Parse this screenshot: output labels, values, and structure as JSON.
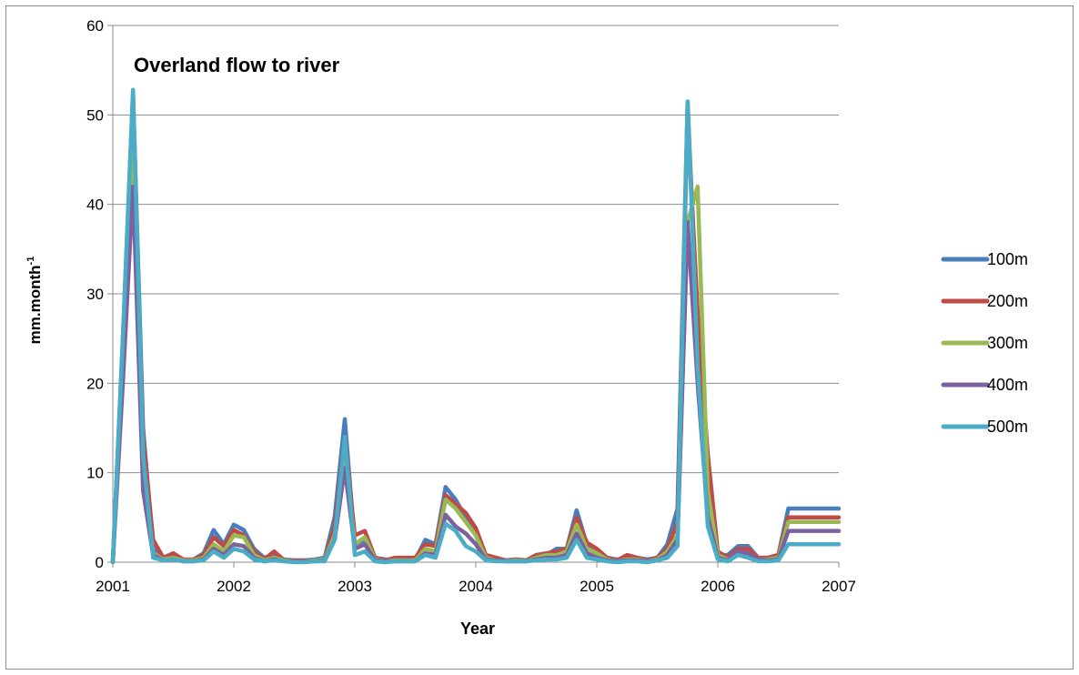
{
  "chart_data": {
    "type": "line",
    "title": "Overland flow to river",
    "xlabel": "Year",
    "ylabel": "mm.month",
    "ylabel_sup": "-1",
    "x_ticks": [
      "2001",
      "2002",
      "2003",
      "2004",
      "2005",
      "2006",
      "2007"
    ],
    "xlim": [
      2001,
      2007
    ],
    "y_ticks": [
      "0",
      "10",
      "20",
      "30",
      "40",
      "50",
      "60"
    ],
    "ylim": [
      0,
      60
    ],
    "grid": "horizontal",
    "legend_position": "right",
    "x": [
      2001.0,
      2001.083,
      2001.167,
      2001.25,
      2001.333,
      2001.417,
      2001.5,
      2001.583,
      2001.667,
      2001.75,
      2001.833,
      2001.917,
      2002.0,
      2002.083,
      2002.167,
      2002.25,
      2002.333,
      2002.417,
      2002.5,
      2002.583,
      2002.667,
      2002.75,
      2002.833,
      2002.917,
      2003.0,
      2003.083,
      2003.167,
      2003.25,
      2003.333,
      2003.417,
      2003.5,
      2003.583,
      2003.667,
      2003.75,
      2003.833,
      2003.917,
      2004.0,
      2004.083,
      2004.167,
      2004.25,
      2004.333,
      2004.417,
      2004.5,
      2004.583,
      2004.667,
      2004.75,
      2004.833,
      2004.917,
      2005.0,
      2005.083,
      2005.167,
      2005.25,
      2005.333,
      2005.417,
      2005.5,
      2005.583,
      2005.667,
      2005.75,
      2005.833,
      2005.917,
      2006.0,
      2006.083,
      2006.167,
      2006.25,
      2006.333,
      2006.417,
      2006.5,
      2006.583,
      2006.667,
      2006.75,
      2006.833,
      2006.917,
      2007.0
    ],
    "series": [
      {
        "name": "100m",
        "color": "#4a7ebb",
        "values": [
          0.0,
          25.0,
          52.5,
          15.0,
          1.5,
          0.5,
          0.8,
          0.2,
          0.3,
          1.0,
          3.6,
          2.0,
          4.2,
          3.6,
          1.5,
          0.5,
          0.8,
          0.3,
          0.2,
          0.2,
          0.3,
          0.5,
          5.0,
          16.0,
          2.0,
          2.5,
          0.5,
          0.3,
          0.3,
          0.3,
          0.3,
          2.5,
          2.0,
          8.4,
          7.0,
          5.0,
          3.0,
          0.5,
          0.3,
          0.2,
          0.3,
          0.2,
          0.8,
          0.8,
          1.5,
          1.5,
          5.8,
          2.0,
          1.5,
          0.5,
          0.3,
          0.3,
          0.5,
          0.3,
          0.5,
          2.0,
          6.0,
          51.5,
          25.0,
          5.0,
          0.8,
          0.8,
          1.8,
          1.8,
          0.5,
          0.5,
          0.8,
          6.0,
          6.0,
          6.0,
          6.0,
          6.0,
          6.0
        ]
      },
      {
        "name": "200m",
        "color": "#be4b48",
        "values": [
          0.0,
          24.0,
          50.0,
          14.0,
          2.5,
          0.5,
          1.0,
          0.3,
          0.3,
          0.8,
          2.8,
          1.8,
          3.6,
          3.0,
          1.2,
          0.3,
          1.2,
          0.2,
          0.2,
          0.2,
          0.2,
          0.3,
          4.0,
          14.0,
          3.0,
          3.5,
          0.5,
          0.2,
          0.5,
          0.5,
          0.5,
          2.0,
          1.8,
          7.5,
          6.5,
          5.5,
          3.8,
          0.8,
          0.5,
          0.2,
          0.3,
          0.2,
          0.8,
          1.0,
          1.2,
          1.5,
          5.0,
          2.2,
          1.5,
          0.5,
          0.2,
          0.8,
          0.5,
          0.2,
          0.5,
          1.5,
          4.5,
          50.0,
          28.0,
          12.0,
          1.2,
          0.5,
          1.5,
          1.5,
          0.5,
          0.5,
          0.8,
          5.0,
          5.0,
          5.0,
          5.0,
          5.0,
          5.0
        ]
      },
      {
        "name": "300m",
        "color": "#98b954",
        "values": [
          0.0,
          23.0,
          48.0,
          10.0,
          1.0,
          0.3,
          0.5,
          0.2,
          0.2,
          0.5,
          2.0,
          1.2,
          3.0,
          2.8,
          0.8,
          0.2,
          0.5,
          0.2,
          0.1,
          0.1,
          0.2,
          0.3,
          3.0,
          12.0,
          2.0,
          2.8,
          0.3,
          0.1,
          0.2,
          0.2,
          0.2,
          1.5,
          1.2,
          7.0,
          6.0,
          4.5,
          3.0,
          0.5,
          0.2,
          0.1,
          0.2,
          0.1,
          0.5,
          0.8,
          0.8,
          1.2,
          4.2,
          1.5,
          1.0,
          0.3,
          0.1,
          0.3,
          0.3,
          0.1,
          0.3,
          1.2,
          3.0,
          38.0,
          42.0,
          8.0,
          0.8,
          0.3,
          1.0,
          1.0,
          0.3,
          0.3,
          0.5,
          4.5,
          4.5,
          4.5,
          4.5,
          4.5,
          4.5
        ]
      },
      {
        "name": "400m",
        "color": "#7d60a0",
        "values": [
          0.0,
          20.0,
          42.0,
          8.0,
          0.8,
          0.2,
          0.3,
          0.1,
          0.1,
          0.3,
          1.5,
          0.8,
          2.0,
          1.8,
          0.5,
          0.1,
          0.3,
          0.1,
          0.1,
          0.1,
          0.1,
          0.2,
          2.5,
          10.5,
          1.5,
          2.0,
          0.2,
          0.1,
          0.1,
          0.1,
          0.1,
          1.0,
          0.8,
          5.3,
          4.0,
          3.2,
          2.0,
          0.3,
          0.2,
          0.1,
          0.1,
          0.1,
          0.3,
          0.5,
          0.5,
          0.8,
          3.2,
          1.0,
          0.5,
          0.2,
          0.1,
          0.2,
          0.2,
          0.1,
          0.2,
          0.8,
          2.5,
          38.0,
          20.0,
          5.0,
          0.5,
          0.2,
          1.2,
          1.0,
          0.3,
          0.2,
          0.3,
          3.5,
          3.5,
          3.5,
          3.5,
          3.5,
          3.5
        ]
      },
      {
        "name": "500m",
        "color": "#4bacc6",
        "values": [
          0.0,
          25.0,
          52.8,
          12.0,
          0.5,
          0.2,
          0.3,
          0.1,
          0.1,
          0.2,
          1.2,
          0.5,
          1.5,
          1.2,
          0.3,
          0.1,
          0.2,
          0.1,
          0.0,
          0.0,
          0.1,
          0.1,
          2.5,
          14.0,
          0.8,
          1.2,
          0.1,
          0.0,
          0.1,
          0.1,
          0.1,
          0.8,
          0.5,
          4.3,
          3.5,
          1.8,
          1.2,
          0.2,
          0.1,
          0.1,
          0.1,
          0.1,
          0.2,
          0.3,
          0.3,
          0.5,
          2.5,
          0.5,
          0.3,
          0.1,
          0.0,
          0.1,
          0.1,
          0.0,
          0.2,
          0.5,
          1.8,
          51.5,
          22.0,
          4.0,
          0.3,
          0.1,
          0.8,
          0.5,
          0.1,
          0.1,
          0.2,
          2.0,
          2.0,
          2.0,
          2.0,
          2.0,
          2.0
        ]
      }
    ]
  }
}
